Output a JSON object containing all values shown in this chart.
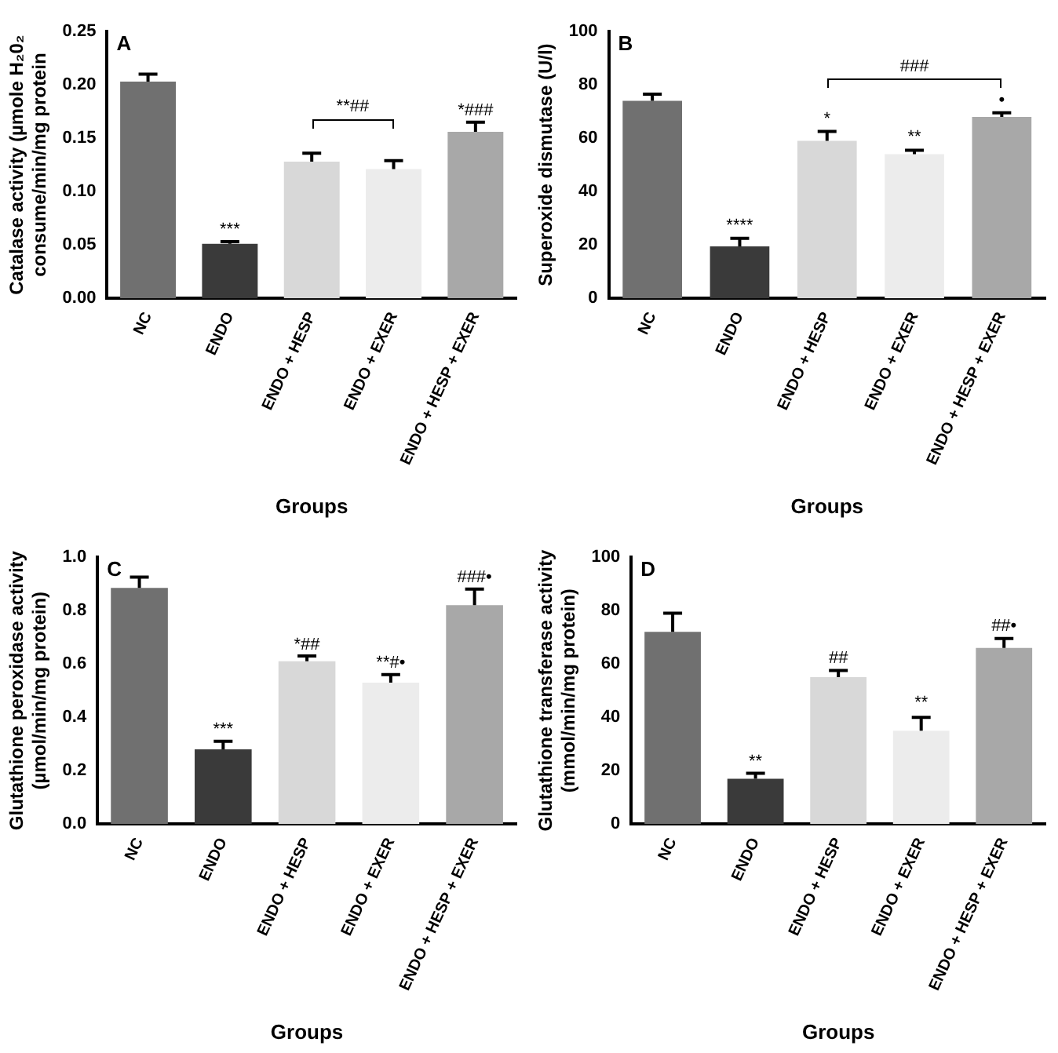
{
  "chart_data": [
    {
      "type": "bar",
      "title": "A",
      "ylabel": "Catalase activity (µmole H₂0₂\nconsume/min/mg protein",
      "xlabel": "Groups",
      "categories": [
        "NC",
        "ENDO",
        "ENDO + HESP",
        "ENDO + EXER",
        "ENDO + HESP + EXER"
      ],
      "values": [
        0.203,
        0.051,
        0.128,
        0.121,
        0.156
      ],
      "errors": [
        0.007,
        0.002,
        0.008,
        0.008,
        0.009
      ],
      "colors": [
        "#707070",
        "#3a3a3a",
        "#d8d8d8",
        "#ececec",
        "#a8a8a8"
      ],
      "ylim": [
        0,
        0.25
      ],
      "yticks": [
        {
          "value": 0,
          "label": "0.00"
        },
        {
          "value": 0.05,
          "label": "0.05"
        },
        {
          "value": 0.1,
          "label": "0.10"
        },
        {
          "value": 0.15,
          "label": "0.15"
        },
        {
          "value": 0.2,
          "label": "0.20"
        },
        {
          "value": 0.25,
          "label": "0.25"
        }
      ],
      "grid": false,
      "legend": false,
      "annotations": [
        {
          "text": "***",
          "x": "ENDO",
          "y": 0.056
        },
        "**##",
        {
          "text": "*###",
          "x": "ENDO + HESP + EXER",
          "y": 0.168
        }
      ]
    },
    {
      "type": "bar",
      "title": "B",
      "ylabel": "Superoxide dismutase (U/l)",
      "xlabel": "Groups",
      "categories": [
        "NC",
        "ENDO",
        "ENDO + HESP",
        "ENDO + EXER",
        "ENDO + HESP + EXER"
      ],
      "values": [
        74,
        19.5,
        59,
        54,
        68
      ],
      "errors": [
        2.5,
        3,
        3.5,
        1.5,
        1.5
      ],
      "colors": [
        "#707070",
        "#3a3a3a",
        "#d8d8d8",
        "#ececec",
        "#a8a8a8"
      ],
      "ylim": [
        0,
        100
      ],
      "yticks": [
        0,
        20,
        40,
        60,
        80,
        100
      ],
      "grid": false,
      "legend": false,
      "annotations": [
        {
          "text": "****",
          "x": "ENDO",
          "y": 24
        },
        {
          "text": "*",
          "x": "ENDO + HESP",
          "y": 64
        },
        {
          "text": "**",
          "x": "ENDO + EXER",
          "y": 57
        },
        {
          "text": "•",
          "x": "ENDO + HESP + EXER",
          "y": 71
        },
        "###"
      ]
    },
    {
      "type": "bar",
      "title": "C",
      "ylabel": "Glutathione peroxidase activity\n(µmol/min/mg protein)",
      "xlabel": "Groups",
      "categories": [
        "NC",
        "ENDO",
        "ENDO + HESP",
        "ENDO + EXER",
        "ENDO + HESP + EXER"
      ],
      "values": [
        0.885,
        0.28,
        0.61,
        0.53,
        0.82
      ],
      "errors": [
        0.04,
        0.03,
        0.02,
        0.03,
        0.06
      ],
      "colors": [
        "#707070",
        "#3a3a3a",
        "#d8d8d8",
        "#ececec",
        "#a8a8a8"
      ],
      "ylim": [
        0,
        1
      ],
      "yticks": [
        {
          "value": 0,
          "label": "0.0"
        },
        {
          "value": 0.2,
          "label": "0.2"
        },
        {
          "value": 0.4,
          "label": "0.4"
        },
        {
          "value": 0.6,
          "label": "0.6"
        },
        {
          "value": 0.8,
          "label": "0.8"
        },
        {
          "value": 1,
          "label": "1.0"
        }
      ],
      "grid": false,
      "legend": false,
      "annotations": [
        {
          "text": "***",
          "x": "ENDO",
          "y": 0.32
        },
        {
          "text": "*##",
          "x": "ENDO + HESP",
          "y": 0.64
        },
        {
          "text": "**#•",
          "x": "ENDO + EXER",
          "y": 0.57
        },
        {
          "text": "###•",
          "x": "ENDO + HESP + EXER",
          "y": 0.89
        }
      ]
    },
    {
      "type": "bar",
      "title": "D",
      "ylabel": "Glutathione transferase activity\n(mmol/min/mg protein)",
      "xlabel": "Groups",
      "categories": [
        "NC",
        "ENDO",
        "ENDO + HESP",
        "ENDO + EXER",
        "ENDO + HESP + EXER"
      ],
      "values": [
        72,
        17,
        55,
        35,
        66
      ],
      "errors": [
        7,
        2,
        2.5,
        5,
        3.5
      ],
      "colors": [
        "#707070",
        "#3a3a3a",
        "#d8d8d8",
        "#ececec",
        "#a8a8a8"
      ],
      "ylim": [
        0,
        100
      ],
      "yticks": [
        0,
        20,
        40,
        60,
        80,
        100
      ],
      "grid": false,
      "legend": false,
      "annotations": [
        {
          "text": "**",
          "x": "ENDO",
          "y": 20
        },
        {
          "text": "##",
          "x": "ENDO + HESP",
          "y": 59
        },
        {
          "text": "**",
          "x": "ENDO + EXER",
          "y": 42
        },
        {
          "text": "##•",
          "x": "ENDO + HESP + EXER",
          "y": 71
        }
      ]
    }
  ]
}
